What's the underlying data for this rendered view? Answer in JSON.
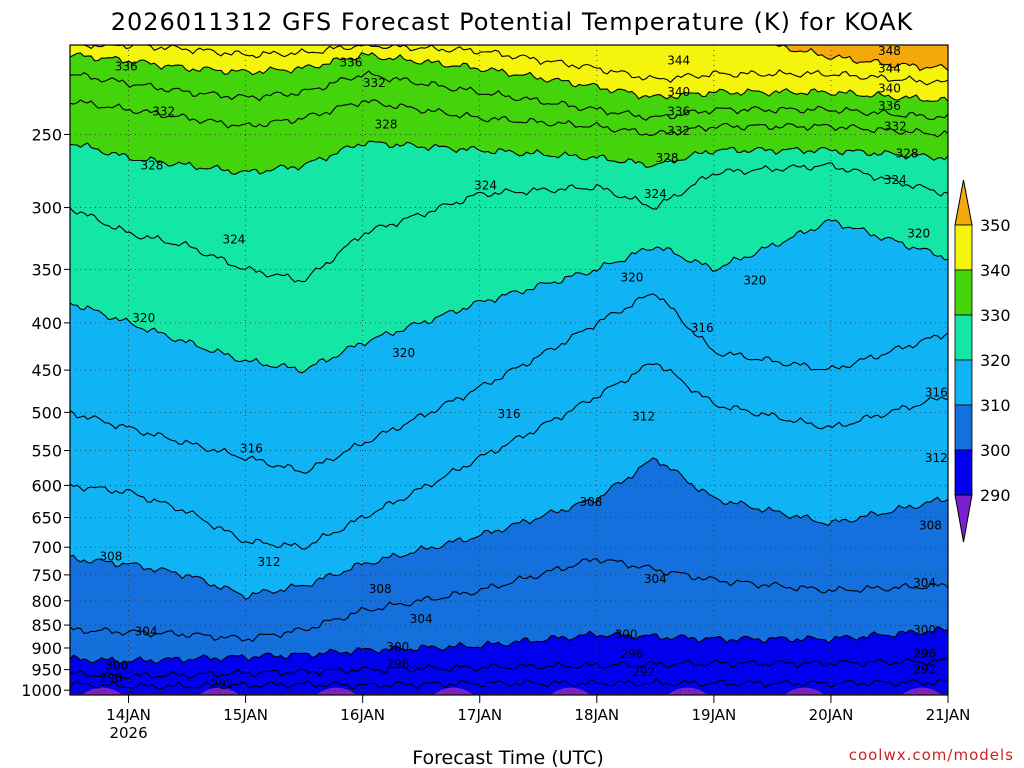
{
  "chart_data": {
    "type": "heatmap",
    "title": "2026011312 GFS Forecast Potential Temperature (K) for KOAK",
    "xlabel": "Forecast Time (UTC)",
    "ylabel": "",
    "credit": "coolwx.com/models",
    "y_scale": "log-pressure",
    "y_ticks": [
      "250",
      "300",
      "350",
      "400",
      "450",
      "500",
      "550",
      "600",
      "650",
      "700",
      "750",
      "800",
      "850",
      "900",
      "950",
      "1000"
    ],
    "y_range_hPa": [
      1012,
      200
    ],
    "x_ticks": [
      "14JAN",
      "15JAN",
      "16JAN",
      "17JAN",
      "18JAN",
      "19JAN",
      "20JAN",
      "21JAN"
    ],
    "x_tick_sub": {
      "14JAN": "2026"
    },
    "x_range_days": [
      13.5,
      21.0
    ],
    "grid": true,
    "colorbar": {
      "placement": "right",
      "labels": [
        "290",
        "300",
        "310",
        "320",
        "330",
        "340",
        "350"
      ],
      "bins": [
        {
          "min": 280,
          "max": 290,
          "color": "#7a1fd0"
        },
        {
          "min": 290,
          "max": 300,
          "color": "#0000ee"
        },
        {
          "min": 300,
          "max": 310,
          "color": "#1470dc"
        },
        {
          "min": 310,
          "max": 320,
          "color": "#10b4f4"
        },
        {
          "min": 320,
          "max": 330,
          "color": "#14e6a6"
        },
        {
          "min": 330,
          "max": 340,
          "color": "#44d40c"
        },
        {
          "min": 340,
          "max": 350,
          "color": "#f4f40c"
        },
        {
          "min": 350,
          "max": 360,
          "color": "#f4a80c"
        }
      ]
    },
    "surface_color": "#a05428",
    "contour_interval_K": 4,
    "series": [
      {
        "name": "292",
        "x": [
          13.5,
          14.0,
          14.5,
          15.0,
          15.5,
          16.0,
          17.0,
          18.0,
          19.0,
          20.0,
          21.0
        ],
        "p": [
          985,
          990,
          990,
          988,
          985,
          988,
          983,
          983,
          983,
          983,
          980
        ]
      },
      {
        "name": "296",
        "x": [
          13.5,
          14.0,
          14.5,
          15.0,
          15.5,
          16.0,
          17.0,
          18.0,
          19.0,
          20.0,
          21.0
        ],
        "p": [
          960,
          965,
          963,
          958,
          955,
          950,
          945,
          940,
          935,
          935,
          930
        ]
      },
      {
        "name": "300",
        "x": [
          13.5,
          14.0,
          14.5,
          15.0,
          15.5,
          16.0,
          17.0,
          18.0,
          19.0,
          20.0,
          21.0
        ],
        "p": [
          925,
          930,
          925,
          920,
          915,
          905,
          895,
          870,
          880,
          880,
          860
        ]
      },
      {
        "name": "304",
        "x": [
          13.5,
          14.0,
          14.5,
          15.0,
          15.5,
          16.0,
          17.0,
          18.0,
          19.0,
          20.0,
          21.0
        ],
        "p": [
          860,
          865,
          870,
          880,
          860,
          820,
          780,
          720,
          760,
          780,
          770
        ]
      },
      {
        "name": "308",
        "x": [
          13.5,
          14.0,
          14.5,
          15.0,
          15.5,
          16.0,
          17.0,
          18.0,
          18.5,
          19.0,
          20.0,
          21.0
        ],
        "p": [
          720,
          730,
          750,
          790,
          770,
          730,
          680,
          620,
          560,
          620,
          660,
          620
        ]
      },
      {
        "name": "312",
        "x": [
          13.5,
          14.0,
          14.5,
          15.0,
          15.5,
          16.0,
          17.0,
          18.0,
          18.5,
          19.0,
          20.0,
          21.0
        ],
        "p": [
          600,
          610,
          640,
          690,
          700,
          650,
          560,
          480,
          440,
          490,
          520,
          480
        ]
      },
      {
        "name": "316",
        "x": [
          13.5,
          14.0,
          14.5,
          15.0,
          15.5,
          16.0,
          17.0,
          18.0,
          18.5,
          19.0,
          20.0,
          21.0
        ],
        "p": [
          500,
          520,
          540,
          560,
          580,
          540,
          470,
          400,
          370,
          430,
          450,
          410
        ]
      },
      {
        "name": "320",
        "x": [
          13.5,
          14.0,
          14.5,
          15.0,
          15.5,
          16.0,
          17.0,
          18.0,
          18.5,
          19.0,
          20.0,
          21.0
        ],
        "p": [
          380,
          400,
          420,
          440,
          450,
          420,
          380,
          350,
          330,
          350,
          310,
          340
        ]
      },
      {
        "name": "324",
        "x": [
          13.5,
          14.0,
          14.5,
          15.0,
          15.5,
          16.0,
          17.0,
          18.0,
          18.5,
          19.0,
          20.0,
          21.0
        ],
        "p": [
          300,
          320,
          330,
          350,
          360,
          320,
          290,
          285,
          300,
          275,
          270,
          290
        ]
      },
      {
        "name": "328",
        "x": [
          13.5,
          14.0,
          14.5,
          15.0,
          15.5,
          16.0,
          17.0,
          18.0,
          18.5,
          19.0,
          20.0,
          21.0
        ],
        "p": [
          255,
          265,
          270,
          275,
          270,
          255,
          260,
          265,
          270,
          260,
          260,
          265
        ]
      },
      {
        "name": "332",
        "x": [
          13.5,
          14.0,
          14.5,
          15.0,
          15.5,
          16.0,
          17.0,
          18.0,
          18.5,
          19.0,
          20.0,
          21.0
        ],
        "p": [
          230,
          235,
          240,
          245,
          240,
          230,
          240,
          245,
          250,
          245,
          245,
          250
        ]
      },
      {
        "name": "336",
        "x": [
          13.5,
          14.0,
          14.5,
          15.0,
          15.5,
          16.0,
          17.0,
          18.0,
          18.5,
          19.0,
          20.0,
          21.0
        ],
        "p": [
          215,
          220,
          225,
          228,
          225,
          215,
          225,
          235,
          240,
          235,
          235,
          240
        ]
      },
      {
        "name": "340",
        "x": [
          13.5,
          14.0,
          14.5,
          15.0,
          15.5,
          16.0,
          17.0,
          18.0,
          18.5,
          19.0,
          20.0,
          21.0
        ],
        "p": [
          205,
          208,
          212,
          214,
          212,
          205,
          212,
          222,
          228,
          225,
          225,
          230
        ]
      },
      {
        "name": "344",
        "x": [
          13.5,
          14.0,
          14.5,
          15.0,
          15.5,
          16.0,
          17.0,
          18.0,
          18.5,
          19.0,
          20.0,
          21.0
        ],
        "p": [
          200,
          200,
          202,
          205,
          204,
          200,
          203,
          212,
          218,
          215,
          215,
          220
        ]
      },
      {
        "name": "348",
        "x": [
          19.5,
          20.0,
          20.5,
          21.0
        ],
        "p": [
          200,
          206,
          210,
          212
        ]
      }
    ],
    "contour_labels": [
      {
        "text": "336",
        "x": 13.98,
        "p": 211
      },
      {
        "text": "332",
        "x": 14.3,
        "p": 236
      },
      {
        "text": "328",
        "x": 14.2,
        "p": 270
      },
      {
        "text": "324",
        "x": 14.9,
        "p": 325
      },
      {
        "text": "320",
        "x": 14.13,
        "p": 395
      },
      {
        "text": "316",
        "x": 15.05,
        "p": 547
      },
      {
        "text": "312",
        "x": 15.2,
        "p": 726
      },
      {
        "text": "308",
        "x": 13.85,
        "p": 716
      },
      {
        "text": "304",
        "x": 14.15,
        "p": 864
      },
      {
        "text": "300",
        "x": 13.9,
        "p": 940
      },
      {
        "text": "296",
        "x": 13.85,
        "p": 970
      },
      {
        "text": "292",
        "x": 14.8,
        "p": 985
      },
      {
        "text": "336",
        "x": 15.9,
        "p": 209
      },
      {
        "text": "332",
        "x": 16.1,
        "p": 220
      },
      {
        "text": "328",
        "x": 16.2,
        "p": 244
      },
      {
        "text": "324",
        "x": 17.05,
        "p": 284
      },
      {
        "text": "320",
        "x": 16.35,
        "p": 431
      },
      {
        "text": "316",
        "x": 17.25,
        "p": 502
      },
      {
        "text": "312",
        "x": 18.4,
        "p": 505
      },
      {
        "text": "308",
        "x": 17.95,
        "p": 625
      },
      {
        "text": "308",
        "x": 16.15,
        "p": 777
      },
      {
        "text": "304",
        "x": 16.5,
        "p": 837
      },
      {
        "text": "304",
        "x": 18.5,
        "p": 758
      },
      {
        "text": "300",
        "x": 16.3,
        "p": 898
      },
      {
        "text": "300",
        "x": 18.25,
        "p": 870
      },
      {
        "text": "296",
        "x": 16.3,
        "p": 937
      },
      {
        "text": "296",
        "x": 18.3,
        "p": 914
      },
      {
        "text": "292",
        "x": 18.4,
        "p": 955
      },
      {
        "text": "344",
        "x": 18.7,
        "p": 208
      },
      {
        "text": "340",
        "x": 18.7,
        "p": 225
      },
      {
        "text": "336",
        "x": 18.7,
        "p": 236
      },
      {
        "text": "332",
        "x": 18.7,
        "p": 248
      },
      {
        "text": "328",
        "x": 18.6,
        "p": 265
      },
      {
        "text": "324",
        "x": 18.5,
        "p": 290
      },
      {
        "text": "320",
        "x": 18.3,
        "p": 357
      },
      {
        "text": "316",
        "x": 18.9,
        "p": 405
      },
      {
        "text": "320",
        "x": 19.35,
        "p": 360
      },
      {
        "text": "348",
        "x": 20.5,
        "p": 203
      },
      {
        "text": "344",
        "x": 20.5,
        "p": 212
      },
      {
        "text": "340",
        "x": 20.5,
        "p": 223
      },
      {
        "text": "336",
        "x": 20.5,
        "p": 233
      },
      {
        "text": "332",
        "x": 20.55,
        "p": 245
      },
      {
        "text": "328",
        "x": 20.65,
        "p": 262
      },
      {
        "text": "324",
        "x": 20.55,
        "p": 280
      },
      {
        "text": "320",
        "x": 20.75,
        "p": 320
      },
      {
        "text": "316",
        "x": 20.9,
        "p": 476
      },
      {
        "text": "312",
        "x": 20.9,
        "p": 560
      },
      {
        "text": "308",
        "x": 20.85,
        "p": 663
      },
      {
        "text": "304",
        "x": 20.8,
        "p": 765
      },
      {
        "text": "300",
        "x": 20.8,
        "p": 860
      },
      {
        "text": "296",
        "x": 20.8,
        "p": 913
      },
      {
        "text": "292",
        "x": 20.8,
        "p": 950
      }
    ]
  }
}
